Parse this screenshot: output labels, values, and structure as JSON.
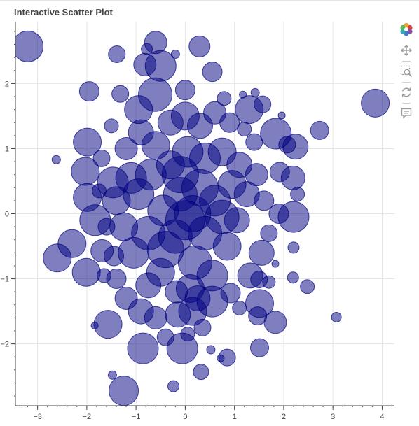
{
  "title": "Interactive Scatter Plot",
  "toolbar": {
    "items": [
      {
        "name": "bokeh-logo",
        "icon": "bokeh-logo-icon"
      },
      {
        "name": "pan-tool",
        "icon": "pan-icon"
      },
      {
        "name": "box-zoom-tool",
        "icon": "box-zoom-icon"
      },
      {
        "name": "reset-tool",
        "icon": "reset-icon"
      },
      {
        "name": "hover-tool",
        "icon": "hover-icon"
      }
    ]
  },
  "colors": {
    "fill": "#000080",
    "fill_opacity": 0.5,
    "grid": "#e5e5e5",
    "axis": "#444444"
  },
  "chart_data": {
    "type": "scatter",
    "title": "Interactive Scatter Plot",
    "xlabel": "",
    "ylabel": "",
    "xlim": [
      -3.45,
      4.25
    ],
    "ylim": [
      -2.95,
      2.95
    ],
    "xticks": [
      -3,
      -2,
      -1,
      0,
      1,
      2,
      3,
      4
    ],
    "yticks": [
      -2,
      -1,
      0,
      1,
      2
    ],
    "xtick_labels": [
      "−3",
      "−2",
      "−1",
      "0",
      "1",
      "2",
      "3",
      "4"
    ],
    "ytick_labels": [
      "−2",
      "−1",
      "0",
      "1",
      "2"
    ],
    "grid": true,
    "marker": "circle",
    "size_unit": "radius in screen pixels (varies per point)",
    "points": [
      {
        "x": -3.2,
        "y": 2.57,
        "r": 22
      },
      {
        "x": 3.86,
        "y": 1.7,
        "r": 20
      },
      {
        "x": -1.25,
        "y": -2.72,
        "r": 21
      },
      {
        "x": -0.86,
        "y": -2.07,
        "r": 22
      },
      {
        "x": -0.06,
        "y": -2.07,
        "r": 22
      },
      {
        "x": -1.57,
        "y": -1.7,
        "r": 20
      },
      {
        "x": -0.6,
        "y": 2.63,
        "r": 16
      },
      {
        "x": 0.29,
        "y": 2.57,
        "r": 15
      },
      {
        "x": -1.39,
        "y": 2.45,
        "r": 12
      },
      {
        "x": -0.78,
        "y": 2.53,
        "r": 8
      },
      {
        "x": -0.2,
        "y": 2.45,
        "r": 6
      },
      {
        "x": -0.82,
        "y": 2.29,
        "r": 16
      },
      {
        "x": -0.5,
        "y": 2.27,
        "r": 22
      },
      {
        "x": 0.55,
        "y": 2.18,
        "r": 14
      },
      {
        "x": -1.95,
        "y": 1.88,
        "r": 14
      },
      {
        "x": -1.32,
        "y": 1.84,
        "r": 12
      },
      {
        "x": 1.17,
        "y": 1.83,
        "r": 5
      },
      {
        "x": 1.42,
        "y": 1.86,
        "r": 6
      },
      {
        "x": -0.61,
        "y": 1.83,
        "r": 24
      },
      {
        "x": 0.0,
        "y": 1.9,
        "r": 14
      },
      {
        "x": 0.79,
        "y": 1.77,
        "r": 10
      },
      {
        "x": 1.3,
        "y": 1.6,
        "r": 20
      },
      {
        "x": 1.57,
        "y": 1.68,
        "r": 12
      },
      {
        "x": 1.96,
        "y": 1.51,
        "r": 5
      },
      {
        "x": 2.73,
        "y": 1.28,
        "r": 13
      },
      {
        "x": 1.84,
        "y": 1.23,
        "r": 22
      },
      {
        "x": 2.07,
        "y": 1.06,
        "r": 12
      },
      {
        "x": 2.24,
        "y": 1.03,
        "r": 18
      },
      {
        "x": -1.99,
        "y": 1.1,
        "r": 20
      },
      {
        "x": -2.62,
        "y": 0.83,
        "r": 6
      },
      {
        "x": -2.03,
        "y": 0.65,
        "r": 20
      },
      {
        "x": -1.47,
        "y": 0.48,
        "r": 22
      },
      {
        "x": -1.99,
        "y": 0.25,
        "r": 20
      },
      {
        "x": 1.92,
        "y": 0.64,
        "r": 14
      },
      {
        "x": 2.19,
        "y": 0.55,
        "r": 17
      },
      {
        "x": 2.28,
        "y": 0.3,
        "r": 10
      },
      {
        "x": 2.2,
        "y": -0.05,
        "r": 22
      },
      {
        "x": 1.9,
        "y": 0.0,
        "r": 14
      },
      {
        "x": -1.83,
        "y": -0.1,
        "r": 22
      },
      {
        "x": -2.3,
        "y": -0.46,
        "r": 20
      },
      {
        "x": -2.6,
        "y": -0.68,
        "r": 20
      },
      {
        "x": -2.01,
        "y": -0.9,
        "r": 20
      },
      {
        "x": -1.69,
        "y": -0.57,
        "r": 16
      },
      {
        "x": 2.2,
        "y": -0.52,
        "r": 8
      },
      {
        "x": 1.83,
        "y": -0.77,
        "r": 5
      },
      {
        "x": 2.19,
        "y": -0.98,
        "r": 8
      },
      {
        "x": 2.48,
        "y": -1.12,
        "r": 10
      },
      {
        "x": 3.07,
        "y": -1.59,
        "r": 7
      },
      {
        "x": 1.51,
        "y": -1.38,
        "r": 20
      },
      {
        "x": 1.47,
        "y": -1.57,
        "r": 13
      },
      {
        "x": 1.83,
        "y": -1.67,
        "r": 16
      },
      {
        "x": 1.51,
        "y": -2.06,
        "r": 13
      },
      {
        "x": 0.85,
        "y": -2.21,
        "r": 12
      },
      {
        "x": 0.72,
        "y": -2.22,
        "r": 5
      },
      {
        "x": 0.52,
        "y": -2.09,
        "r": 6
      },
      {
        "x": 0.32,
        "y": -2.43,
        "r": 11
      },
      {
        "x": -0.24,
        "y": -2.65,
        "r": 8
      },
      {
        "x": -1.48,
        "y": -2.48,
        "r": 6
      },
      {
        "x": -1.84,
        "y": -1.72,
        "r": 5
      },
      {
        "x": -0.18,
        "y": -1.2,
        "r": 16
      },
      {
        "x": 0.15,
        "y": -1.5,
        "r": 20
      },
      {
        "x": 0.55,
        "y": -1.35,
        "r": 22
      },
      {
        "x": 0.92,
        "y": -1.22,
        "r": 14
      },
      {
        "x": 1.1,
        "y": -1.45,
        "r": 10
      },
      {
        "x": 1.32,
        "y": -0.95,
        "r": 18
      },
      {
        "x": 1.55,
        "y": -0.6,
        "r": 18
      },
      {
        "x": 1.5,
        "y": -1.01,
        "r": 12
      },
      {
        "x": 1.7,
        "y": -1.05,
        "r": 9
      },
      {
        "x": -1.4,
        "y": -1.0,
        "r": 14
      },
      {
        "x": -1.2,
        "y": -1.3,
        "r": 16
      },
      {
        "x": -0.9,
        "y": -1.5,
        "r": 18
      },
      {
        "x": -0.6,
        "y": -1.6,
        "r": 16
      },
      {
        "x": -0.4,
        "y": -1.9,
        "r": 12
      },
      {
        "x": -1.05,
        "y": -0.6,
        "r": 22
      },
      {
        "x": -0.75,
        "y": -0.3,
        "r": 24
      },
      {
        "x": -0.45,
        "y": 0.05,
        "r": 22
      },
      {
        "x": -0.1,
        "y": 0.3,
        "r": 24
      },
      {
        "x": 0.15,
        "y": 0.0,
        "r": 26
      },
      {
        "x": 0.4,
        "y": -0.3,
        "r": 24
      },
      {
        "x": 0.6,
        "y": 0.2,
        "r": 22
      },
      {
        "x": 0.85,
        "y": -0.5,
        "r": 20
      },
      {
        "x": 1.05,
        "y": -0.1,
        "r": 18
      },
      {
        "x": 1.25,
        "y": 0.3,
        "r": 18
      },
      {
        "x": 1.45,
        "y": 0.6,
        "r": 16
      },
      {
        "x": 1.1,
        "y": 0.75,
        "r": 18
      },
      {
        "x": 0.75,
        "y": 0.95,
        "r": 20
      },
      {
        "x": 0.4,
        "y": 0.85,
        "r": 22
      },
      {
        "x": 0.05,
        "y": 0.95,
        "r": 22
      },
      {
        "x": -0.3,
        "y": 0.75,
        "r": 20
      },
      {
        "x": -0.6,
        "y": 1.05,
        "r": 20
      },
      {
        "x": -0.9,
        "y": 1.25,
        "r": 18
      },
      {
        "x": -1.2,
        "y": 1.0,
        "r": 16
      },
      {
        "x": -1.1,
        "y": 0.55,
        "r": 22
      },
      {
        "x": -1.4,
        "y": 0.2,
        "r": 20
      },
      {
        "x": -1.25,
        "y": -0.2,
        "r": 20
      },
      {
        "x": -0.95,
        "y": 0.3,
        "r": 22
      },
      {
        "x": -0.2,
        "y": -0.35,
        "r": 24
      },
      {
        "x": 0.2,
        "y": -0.75,
        "r": 24
      },
      {
        "x": 0.55,
        "y": -0.95,
        "r": 22
      },
      {
        "x": -0.5,
        "y": -0.9,
        "r": 20
      },
      {
        "x": -0.75,
        "y": -1.1,
        "r": 18
      },
      {
        "x": 0.1,
        "y": -1.15,
        "r": 20
      },
      {
        "x": 0.35,
        "y": -1.75,
        "r": 12
      },
      {
        "x": 0.05,
        "y": -1.85,
        "r": 10
      },
      {
        "x": 0.0,
        "y": 1.5,
        "r": 20
      },
      {
        "x": 0.3,
        "y": 1.35,
        "r": 18
      },
      {
        "x": -0.3,
        "y": 1.4,
        "r": 18
      },
      {
        "x": 0.6,
        "y": 1.55,
        "r": 16
      },
      {
        "x": 0.9,
        "y": 1.4,
        "r": 14
      },
      {
        "x": -0.95,
        "y": 1.6,
        "r": 20
      },
      {
        "x": -1.5,
        "y": 1.35,
        "r": 10
      },
      {
        "x": -1.7,
        "y": 0.85,
        "r": 12
      },
      {
        "x": -1.75,
        "y": 0.35,
        "r": 10
      },
      {
        "x": -1.6,
        "y": -0.2,
        "r": 12
      },
      {
        "x": -1.45,
        "y": -0.65,
        "r": 14
      },
      {
        "x": -1.65,
        "y": -0.95,
        "r": 10
      },
      {
        "x": 1.6,
        "y": 0.2,
        "r": 14
      },
      {
        "x": 1.7,
        "y": -0.3,
        "r": 12
      },
      {
        "x": 1.4,
        "y": 1.1,
        "r": 12
      },
      {
        "x": 1.2,
        "y": 1.3,
        "r": 10
      },
      {
        "x": -0.1,
        "y": 0.6,
        "r": 26
      },
      {
        "x": 0.3,
        "y": 0.4,
        "r": 26
      },
      {
        "x": -0.4,
        "y": -0.55,
        "r": 26
      },
      {
        "x": 0.0,
        "y": -0.1,
        "r": 28
      },
      {
        "x": 0.75,
        "y": -0.05,
        "r": 24
      },
      {
        "x": -0.7,
        "y": 0.6,
        "r": 22
      },
      {
        "x": 0.95,
        "y": 0.45,
        "r": 20
      },
      {
        "x": -0.15,
        "y": -1.55,
        "r": 18
      },
      {
        "x": 0.25,
        "y": -1.3,
        "r": 18
      }
    ]
  }
}
